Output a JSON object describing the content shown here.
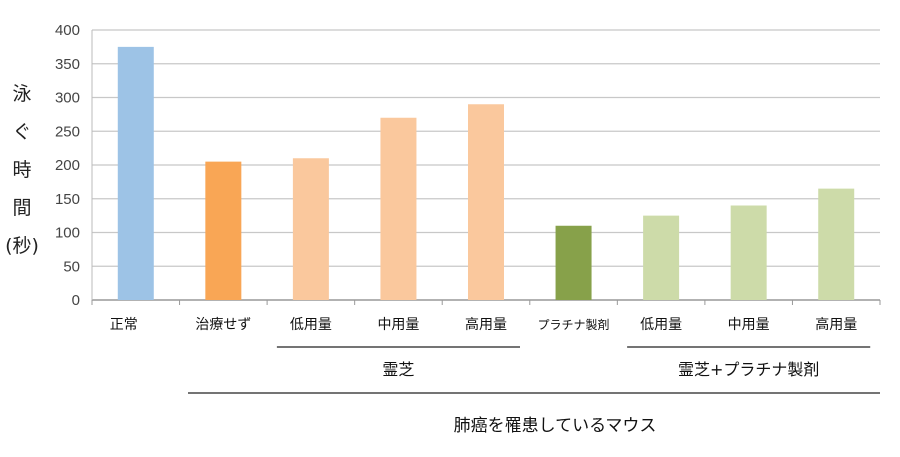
{
  "chart_data": {
    "type": "bar",
    "title": "",
    "ylabel_chars": [
      "泳",
      "ぐ",
      "時",
      "間",
      "(秒)"
    ],
    "xlabel": "肺癌を罹患しているマウス",
    "ylim": [
      0,
      400
    ],
    "yticks": [
      0,
      50,
      100,
      150,
      200,
      250,
      300,
      350,
      400
    ],
    "grid": true,
    "categories": [
      "正常",
      "治療せず",
      "低用量",
      "中用量",
      "高用量",
      "プラチナ製剤",
      "低用量",
      "中用量",
      "高用量"
    ],
    "values": [
      375,
      205,
      210,
      270,
      290,
      110,
      125,
      140,
      165
    ],
    "colors": [
      "#9DC3E6",
      "#F9A655",
      "#FAC89D",
      "#FAC89D",
      "#FAC89D",
      "#87A14A",
      "#CDDBA9",
      "#CDDBA9",
      "#CDDBA9"
    ],
    "groups": [
      {
        "label": "霊芝",
        "from": 2,
        "to": 4
      },
      {
        "label": "霊芝+プラチナ製剤",
        "from": 6,
        "to": 8
      }
    ]
  }
}
